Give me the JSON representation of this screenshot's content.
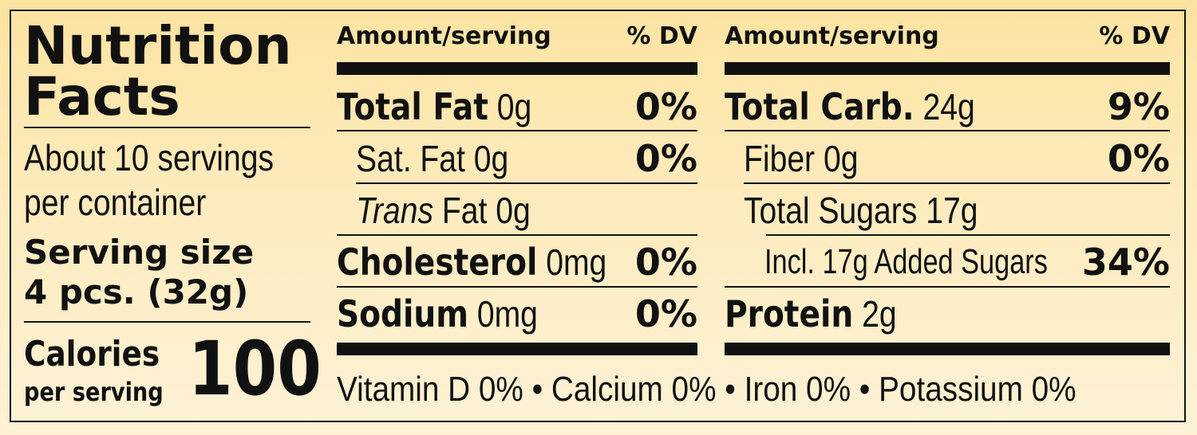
{
  "label": {
    "title_line1": "Nutrition",
    "title_line2": "Facts",
    "servings_line1": "About 10 servings",
    "servings_line2": "per container",
    "serving_size_label": "Serving size",
    "serving_size_value": "4 pcs. (32g)",
    "calories_label": "Calories",
    "calories_sub": "per serving",
    "calories_value": "100",
    "col1_header_amount": "Amount/serving",
    "col1_header_dv": "% DV",
    "col2_header_amount": "Amount/serving",
    "col2_header_dv": "% DV",
    "col1": [
      {
        "name": "Total Fat",
        "amount": "0g",
        "dv": "0%",
        "bold": true
      },
      {
        "name": "Sat. Fat",
        "amount": "0g",
        "dv": "0%",
        "bold": false
      },
      {
        "name_italic": "Trans",
        "name": "Fat",
        "amount": "0g",
        "dv": "",
        "bold": false
      },
      {
        "name": "Cholesterol",
        "amount": "0mg",
        "dv": "0%",
        "bold": true
      },
      {
        "name": "Sodium",
        "amount": "0mg",
        "dv": "0%",
        "bold": true
      }
    ],
    "col2": [
      {
        "name": "Total Carb.",
        "amount": "24g",
        "dv": "9%",
        "bold": true
      },
      {
        "name": "Fiber",
        "amount": "0g",
        "dv": "0%",
        "bold": false
      },
      {
        "name": "Total Sugars",
        "amount": "17g",
        "dv": "",
        "bold": false
      },
      {
        "name": "Incl. 17g Added Sugars",
        "amount": "",
        "dv": "34%",
        "bold": false
      },
      {
        "name": "Protein",
        "amount": "2g",
        "dv": "",
        "bold": true
      }
    ],
    "footer": "Vitamin D 0% • Calcium 0% • Iron 0% • Potassium 0%"
  }
}
